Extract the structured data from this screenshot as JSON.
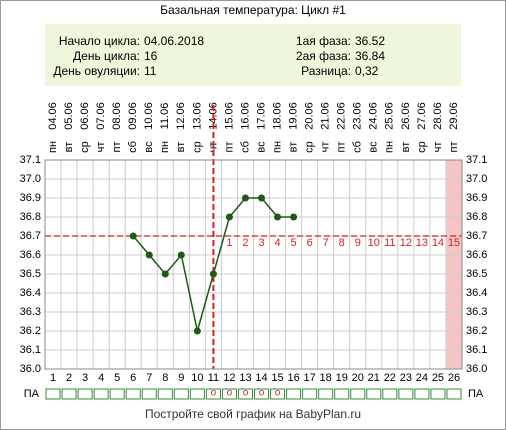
{
  "chart_data": {
    "type": "line",
    "title": "Базальная температура: Цикл #1",
    "info_left": [
      {
        "label": "Начало цикла:",
        "value": "04.06.2018"
      },
      {
        "label": "День цикла:",
        "value": "16"
      },
      {
        "label": "День овуляции:",
        "value": "11"
      }
    ],
    "info_right": [
      {
        "label": "1ая фаза:",
        "value": "36.52"
      },
      {
        "label": "2ая фаза:",
        "value": "36.84"
      },
      {
        "label": "Разница:",
        "value": "0,32"
      }
    ],
    "categories": [
      "1",
      "2",
      "3",
      "4",
      "5",
      "6",
      "7",
      "8",
      "9",
      "10",
      "11",
      "12",
      "13",
      "14",
      "15",
      "16",
      "17",
      "18",
      "19",
      "20",
      "21",
      "22",
      "23",
      "24",
      "25",
      "26"
    ],
    "dates": [
      "04.06",
      "05.06",
      "06.06",
      "07.06",
      "08.06",
      "09.06",
      "10.06",
      "11.06",
      "12.06",
      "13.06",
      "14.06",
      "15.06",
      "16.06",
      "17.06",
      "18.06",
      "19.06",
      "20.06",
      "21.06",
      "22.06",
      "23.06",
      "24.06",
      "25.06",
      "26.06",
      "27.06",
      "28.06",
      "29.06"
    ],
    "weekdays": [
      "пн",
      "вт",
      "ср",
      "чт",
      "пт",
      "сб",
      "вс",
      "пн",
      "вт",
      "ср",
      "чт",
      "пт",
      "сб",
      "вс",
      "пн",
      "вт",
      "ср",
      "чт",
      "пт",
      "сб",
      "вс",
      "пн",
      "вт",
      "ср",
      "чт",
      "пт"
    ],
    "values": [
      null,
      null,
      null,
      null,
      null,
      36.7,
      36.6,
      36.5,
      36.6,
      36.2,
      36.5,
      36.8,
      36.9,
      36.9,
      36.8,
      36.8,
      null,
      null,
      null,
      null,
      null,
      null,
      null,
      null,
      null,
      null
    ],
    "luteal_days": [
      null,
      null,
      null,
      null,
      null,
      null,
      null,
      null,
      null,
      null,
      null,
      "1",
      "2",
      "3",
      "4",
      "5",
      "6",
      "7",
      "8",
      "9",
      "10",
      "11",
      "12",
      "13",
      "14",
      "15"
    ],
    "pa_label": "ПА",
    "pa_marks": [
      null,
      null,
      null,
      null,
      null,
      null,
      null,
      null,
      null,
      null,
      "o",
      "o",
      "o",
      "o",
      "o",
      null,
      null,
      null,
      null,
      null,
      null,
      null,
      null,
      null,
      null,
      null
    ],
    "ylim": [
      36.0,
      37.1
    ],
    "yticks": [
      {
        "value": 36.0,
        "label": "36.0"
      },
      36.1,
      36.2,
      36.3,
      36.4,
      36.5,
      36.6,
      36.7,
      36.8,
      36.9,
      {
        "value": 37.0,
        "label": "37.0"
      },
      37.1
    ],
    "coverline": 36.7,
    "ovulation_day": 11,
    "highlight_day": 26,
    "color": "#1e5a14",
    "reference_color": "#d42020",
    "highlight_color": "#f7c4c4",
    "info_background": "#eef6dc",
    "grid": true,
    "footer": "Постройте свой график на BabyPlan.ru"
  }
}
